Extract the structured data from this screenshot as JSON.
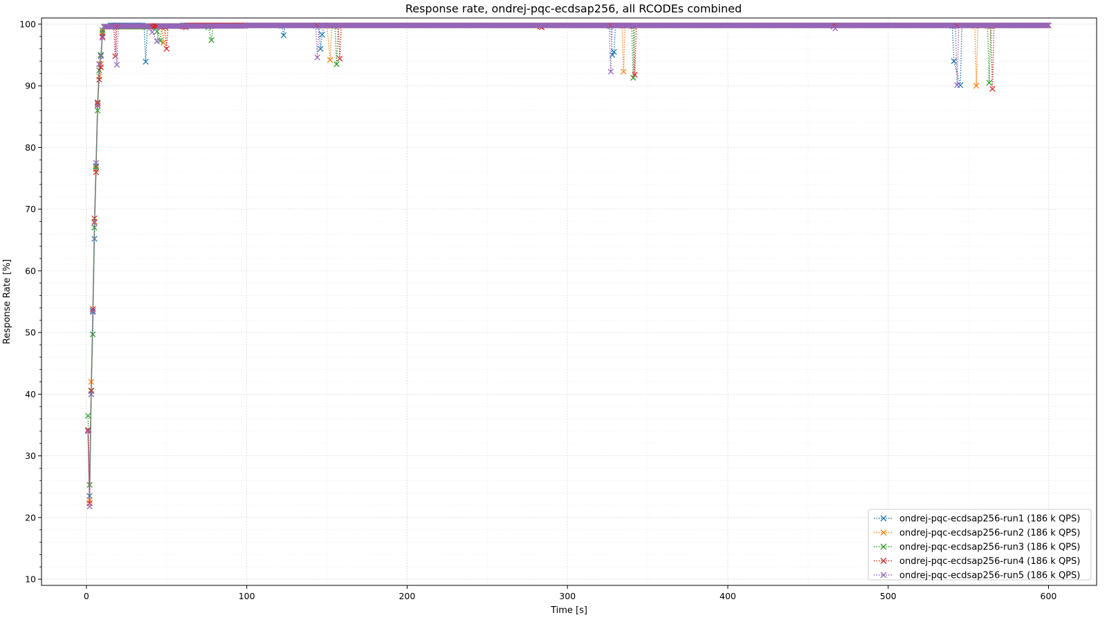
{
  "chart_data": {
    "type": "line",
    "title": "Response rate, ondrej-pqc-ecdsap256, all RCODEs combined",
    "xlabel": "Time [s]",
    "ylabel": "Response Rate [%]",
    "xlim": [
      -28,
      630
    ],
    "ylim": [
      9,
      101
    ],
    "xticks": [
      0,
      100,
      200,
      300,
      400,
      500,
      600
    ],
    "yticks": [
      10,
      20,
      30,
      40,
      50,
      60,
      70,
      80,
      90,
      100
    ],
    "grid": true,
    "minor_grid": true,
    "legend_position": "bottom-right",
    "marker": "x",
    "line_style": "dotted",
    "series": [
      {
        "name": "ondrej-pqc-ecdsap256-run1 (186 k QPS)",
        "color": "#1f77b4",
        "points": [
          [
            1,
            34
          ],
          [
            2,
            23.5
          ],
          [
            3,
            40
          ],
          [
            4,
            53.5
          ],
          [
            5,
            65.2
          ],
          [
            6,
            77
          ],
          [
            7,
            87.2
          ],
          [
            8,
            93.5
          ],
          [
            9,
            95
          ],
          [
            10,
            98.5
          ],
          [
            11,
            99.6
          ],
          [
            15,
            99.8
          ],
          [
            30,
            99.8
          ],
          [
            36,
            99.6
          ],
          [
            37,
            93.9
          ],
          [
            38,
            99.7
          ],
          [
            60,
            99.8
          ],
          [
            100,
            99.8
          ],
          [
            122,
            99.7
          ],
          [
            123,
            98.2
          ],
          [
            124,
            99.8
          ],
          [
            140,
            99.8
          ],
          [
            145,
            99.7
          ],
          [
            146,
            96
          ],
          [
            147,
            98.3
          ],
          [
            148,
            99.8
          ],
          [
            200,
            99.8
          ],
          [
            300,
            99.8
          ],
          [
            327,
            99.7
          ],
          [
            328,
            95
          ],
          [
            329,
            95.5
          ],
          [
            330,
            99.8
          ],
          [
            400,
            99.8
          ],
          [
            500,
            99.8
          ],
          [
            540,
            99.7
          ],
          [
            541,
            94
          ],
          [
            545,
            90.1
          ],
          [
            546,
            99.8
          ],
          [
            600,
            99.8
          ]
        ]
      },
      {
        "name": "ondrej-pqc-ecdsap256-run2 (186 k QPS)",
        "color": "#ff7f0e",
        "points": [
          [
            1,
            34
          ],
          [
            2,
            22.8
          ],
          [
            3,
            42
          ],
          [
            4,
            53.8
          ],
          [
            5,
            68
          ],
          [
            6,
            76.5
          ],
          [
            7,
            87
          ],
          [
            8,
            91.5
          ],
          [
            9,
            93.5
          ],
          [
            10,
            98.7
          ],
          [
            11,
            99.6
          ],
          [
            40,
            99.7
          ],
          [
            47,
            99.5
          ],
          [
            48,
            97
          ],
          [
            49,
            99.7
          ],
          [
            70,
            99.8
          ],
          [
            150,
            99.7
          ],
          [
            152,
            94.2
          ],
          [
            153,
            99.8
          ],
          [
            200,
            99.8
          ],
          [
            300,
            99.8
          ],
          [
            334,
            99.7
          ],
          [
            335,
            92.3
          ],
          [
            336,
            99.8
          ],
          [
            400,
            99.8
          ],
          [
            500,
            99.8
          ],
          [
            554,
            99.7
          ],
          [
            555,
            90
          ],
          [
            556,
            99.8
          ],
          [
            600,
            99.8
          ]
        ]
      },
      {
        "name": "ondrej-pqc-ecdsap256-run3 (186 k QPS)",
        "color": "#2ca02c",
        "points": [
          [
            1,
            36.5
          ],
          [
            2,
            25.3
          ],
          [
            3,
            40.5
          ],
          [
            4,
            49.7
          ],
          [
            5,
            67
          ],
          [
            6,
            76.8
          ],
          [
            7,
            86
          ],
          [
            8,
            92.5
          ],
          [
            9,
            95
          ],
          [
            10,
            99
          ],
          [
            11,
            99.6
          ],
          [
            43,
            99.5
          ],
          [
            44,
            98.8
          ],
          [
            46,
            97.3
          ],
          [
            47,
            99.7
          ],
          [
            76,
            99.5
          ],
          [
            78,
            97.4
          ],
          [
            79,
            99.8
          ],
          [
            155,
            99.7
          ],
          [
            156,
            93.5
          ],
          [
            157,
            99.8
          ],
          [
            200,
            99.8
          ],
          [
            300,
            99.8
          ],
          [
            340,
            99.7
          ],
          [
            341,
            91.3
          ],
          [
            342,
            99.8
          ],
          [
            400,
            99.8
          ],
          [
            500,
            99.8
          ],
          [
            562,
            99.7
          ],
          [
            563,
            90.5
          ],
          [
            564,
            99.8
          ],
          [
            600,
            99.8
          ]
        ]
      },
      {
        "name": "ondrej-pqc-ecdsap256-run4 (186 k QPS)",
        "color": "#d62728",
        "points": [
          [
            1,
            34.2
          ],
          [
            2,
            22.3
          ],
          [
            3,
            40.6
          ],
          [
            4,
            53.8
          ],
          [
            5,
            68.5
          ],
          [
            6,
            76
          ],
          [
            7,
            87.3
          ],
          [
            8,
            91
          ],
          [
            9,
            93
          ],
          [
            10,
            98
          ],
          [
            11,
            99.6
          ],
          [
            17,
            99.7
          ],
          [
            18,
            94.8
          ],
          [
            19,
            99.7
          ],
          [
            49,
            99.5
          ],
          [
            50,
            96
          ],
          [
            51,
            99.7
          ],
          [
            60,
            99.6
          ],
          [
            62,
            99.5
          ],
          [
            63,
            99.8
          ],
          [
            157,
            99.7
          ],
          [
            158,
            94.4
          ],
          [
            159,
            99.8
          ],
          [
            283,
            99.6
          ],
          [
            284,
            99.5
          ],
          [
            285,
            99.8
          ],
          [
            341,
            99.7
          ],
          [
            342,
            91.8
          ],
          [
            343,
            99.8
          ],
          [
            400,
            99.8
          ],
          [
            500,
            99.8
          ],
          [
            564,
            99.7
          ],
          [
            565,
            89.5
          ],
          [
            566,
            99.8
          ],
          [
            600,
            99.8
          ]
        ]
      },
      {
        "name": "ondrej-pqc-ecdsap256-run5 (186 k QPS)",
        "color": "#9467bd",
        "points": [
          [
            1,
            34
          ],
          [
            2,
            21.8
          ],
          [
            3,
            40
          ],
          [
            4,
            53.3
          ],
          [
            5,
            67.8
          ],
          [
            6,
            77.5
          ],
          [
            7,
            86.8
          ],
          [
            8,
            93.5
          ],
          [
            9,
            94.8
          ],
          [
            10,
            97.8
          ],
          [
            11,
            99.6
          ],
          [
            18,
            99.7
          ],
          [
            19,
            93.4
          ],
          [
            20,
            99.7
          ],
          [
            40,
            99.5
          ],
          [
            41,
            98.7
          ],
          [
            44,
            97.2
          ],
          [
            45,
            99.7
          ],
          [
            100,
            99.8
          ],
          [
            143,
            99.7
          ],
          [
            144,
            94.6
          ],
          [
            145,
            99.8
          ],
          [
            200,
            99.8
          ],
          [
            300,
            99.8
          ],
          [
            326,
            99.7
          ],
          [
            327,
            92.3
          ],
          [
            328,
            99.8
          ],
          [
            400,
            99.8
          ],
          [
            466,
            99.6
          ],
          [
            467,
            99.3
          ],
          [
            468,
            99.8
          ],
          [
            542,
            99.7
          ],
          [
            543,
            90.1
          ],
          [
            544,
            99.8
          ],
          [
            600,
            99.8
          ]
        ]
      }
    ]
  }
}
